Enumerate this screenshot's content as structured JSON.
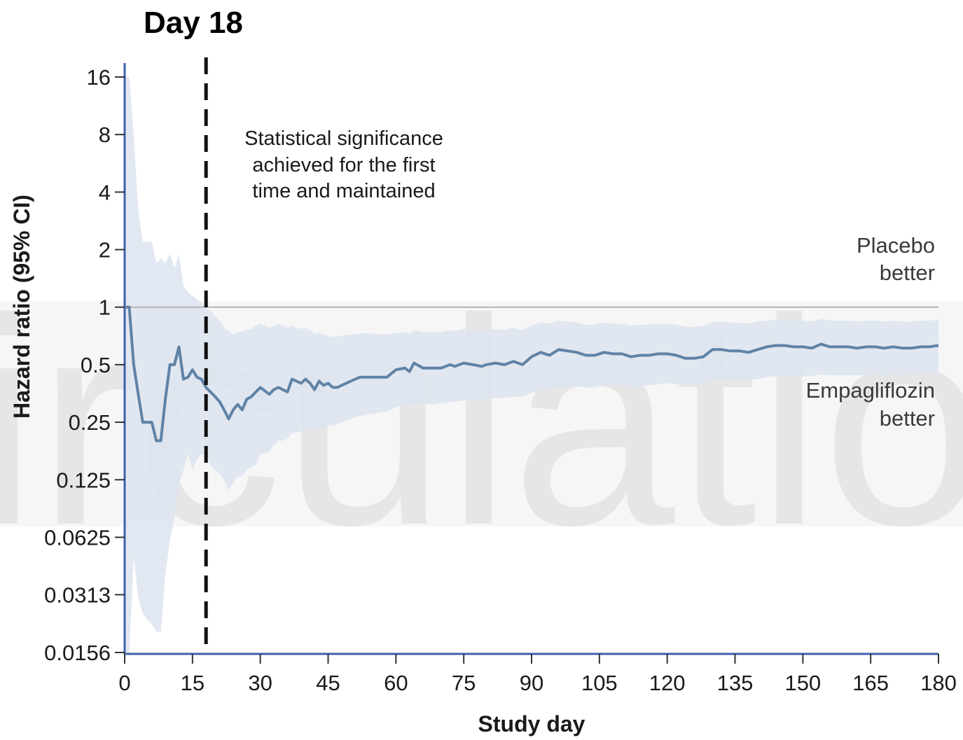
{
  "chart_data": {
    "type": "line",
    "title": "Day 18",
    "xlabel": "Study day",
    "ylabel": "Hazard ratio (95% CI)",
    "y_scale": "log2",
    "xlim": [
      0,
      180
    ],
    "ylim": [
      0.0156,
      16
    ],
    "x_ticks": [
      0,
      15,
      30,
      45,
      60,
      75,
      90,
      105,
      120,
      135,
      150,
      165,
      180
    ],
    "y_ticks": [
      16,
      8,
      4,
      2,
      1,
      0.5,
      0.25,
      0.125,
      0.0625,
      0.0313,
      0.0156
    ],
    "y_tick_labels": [
      "16",
      "8",
      "4",
      "2",
      "1",
      "0.5",
      "0.25",
      "0.125",
      "0.0625",
      "0.0313",
      "0.0156"
    ],
    "reference_line": 1,
    "vertical_marker": {
      "x": 18
    },
    "annotation": [
      "Statistical significance",
      "achieved for the first",
      "time and maintained"
    ],
    "region_labels": {
      "upper": [
        "Placebo",
        "better"
      ],
      "lower": [
        "Empagliflozin",
        "better"
      ]
    },
    "colors": {
      "line": "#5f83a6",
      "ci_band": "#dde4ef",
      "axis": "#3f5fae",
      "reference": "#b3b3b3",
      "marker": "#111111"
    },
    "series": [
      {
        "x": [
          0,
          1,
          2,
          3,
          4,
          5,
          6,
          7,
          8,
          9,
          10,
          11,
          12,
          13,
          14,
          15,
          16,
          17,
          18,
          19,
          20,
          21,
          22,
          23,
          24,
          25,
          26,
          27,
          28,
          29,
          30,
          32,
          33,
          34,
          35,
          36,
          37,
          38,
          39,
          40,
          41,
          42,
          43,
          44,
          45,
          46,
          47,
          48,
          50,
          52,
          54,
          56,
          58,
          60,
          62,
          63,
          64,
          66,
          68,
          70,
          72,
          73,
          75,
          77,
          79,
          80,
          82,
          84,
          86,
          88,
          90,
          92,
          94,
          96,
          98,
          100,
          102,
          104,
          106,
          108,
          110,
          112,
          114,
          116,
          118,
          120,
          122,
          124,
          126,
          128,
          130,
          132,
          134,
          136,
          138,
          140,
          142,
          144,
          146,
          148,
          150,
          152,
          154,
          156,
          158,
          160,
          162,
          164,
          166,
          168,
          170,
          172,
          174,
          176,
          178,
          180
        ],
        "y": [
          1.0,
          1.0,
          0.5,
          0.35,
          0.25,
          0.25,
          0.25,
          0.2,
          0.2,
          0.33,
          0.5,
          0.5,
          0.62,
          0.42,
          0.43,
          0.47,
          0.43,
          0.42,
          0.38,
          0.36,
          0.34,
          0.32,
          0.29,
          0.26,
          0.29,
          0.31,
          0.29,
          0.33,
          0.34,
          0.36,
          0.38,
          0.35,
          0.37,
          0.38,
          0.37,
          0.36,
          0.42,
          0.41,
          0.4,
          0.42,
          0.4,
          0.37,
          0.41,
          0.39,
          0.4,
          0.38,
          0.38,
          0.39,
          0.41,
          0.43,
          0.43,
          0.43,
          0.43,
          0.47,
          0.48,
          0.46,
          0.51,
          0.48,
          0.48,
          0.48,
          0.5,
          0.49,
          0.51,
          0.5,
          0.49,
          0.5,
          0.51,
          0.5,
          0.52,
          0.5,
          0.55,
          0.58,
          0.56,
          0.6,
          0.59,
          0.58,
          0.56,
          0.56,
          0.58,
          0.57,
          0.57,
          0.55,
          0.56,
          0.56,
          0.57,
          0.57,
          0.56,
          0.54,
          0.54,
          0.55,
          0.6,
          0.6,
          0.59,
          0.59,
          0.58,
          0.6,
          0.62,
          0.63,
          0.63,
          0.62,
          0.62,
          0.61,
          0.64,
          0.62,
          0.62,
          0.62,
          0.61,
          0.62,
          0.62,
          0.61,
          0.62,
          0.61,
          0.61,
          0.62,
          0.62,
          0.63
        ],
        "lower": [
          0.0156,
          0.0156,
          0.05,
          0.03,
          0.025,
          0.023,
          0.022,
          0.02,
          0.02,
          0.04,
          0.06,
          0.08,
          0.12,
          0.14,
          0.17,
          0.14,
          0.16,
          0.17,
          0.17,
          0.15,
          0.14,
          0.135,
          0.125,
          0.11,
          0.12,
          0.13,
          0.13,
          0.14,
          0.145,
          0.15,
          0.17,
          0.175,
          0.19,
          0.2,
          0.2,
          0.205,
          0.22,
          0.22,
          0.225,
          0.23,
          0.23,
          0.225,
          0.235,
          0.235,
          0.24,
          0.24,
          0.245,
          0.25,
          0.26,
          0.27,
          0.275,
          0.28,
          0.285,
          0.3,
          0.305,
          0.305,
          0.31,
          0.31,
          0.31,
          0.315,
          0.32,
          0.32,
          0.325,
          0.325,
          0.325,
          0.33,
          0.335,
          0.335,
          0.34,
          0.34,
          0.355,
          0.37,
          0.37,
          0.385,
          0.385,
          0.385,
          0.38,
          0.38,
          0.39,
          0.39,
          0.39,
          0.385,
          0.385,
          0.39,
          0.395,
          0.4,
          0.395,
          0.39,
          0.39,
          0.395,
          0.415,
          0.42,
          0.415,
          0.415,
          0.415,
          0.42,
          0.43,
          0.435,
          0.435,
          0.435,
          0.435,
          0.435,
          0.445,
          0.44,
          0.44,
          0.44,
          0.44,
          0.44,
          0.445,
          0.44,
          0.445,
          0.44,
          0.445,
          0.445,
          0.45,
          0.45
        ],
        "upper": [
          16,
          16,
          8,
          3.2,
          2.2,
          2.2,
          2.2,
          1.7,
          1.8,
          1.7,
          1.9,
          1.6,
          1.9,
          1.3,
          1.2,
          1.15,
          1.1,
          1.05,
          0.98,
          0.96,
          0.9,
          0.85,
          0.78,
          0.75,
          0.72,
          0.74,
          0.75,
          0.76,
          0.77,
          0.8,
          0.82,
          0.78,
          0.8,
          0.82,
          0.8,
          0.78,
          0.8,
          0.78,
          0.77,
          0.78,
          0.76,
          0.72,
          0.74,
          0.72,
          0.71,
          0.7,
          0.7,
          0.71,
          0.72,
          0.73,
          0.73,
          0.72,
          0.72,
          0.73,
          0.74,
          0.73,
          0.76,
          0.74,
          0.74,
          0.74,
          0.76,
          0.75,
          0.77,
          0.76,
          0.75,
          0.76,
          0.77,
          0.76,
          0.78,
          0.76,
          0.8,
          0.83,
          0.82,
          0.85,
          0.84,
          0.83,
          0.81,
          0.81,
          0.83,
          0.82,
          0.82,
          0.8,
          0.81,
          0.81,
          0.82,
          0.82,
          0.81,
          0.79,
          0.79,
          0.8,
          0.84,
          0.84,
          0.83,
          0.83,
          0.82,
          0.84,
          0.85,
          0.86,
          0.86,
          0.85,
          0.85,
          0.84,
          0.87,
          0.85,
          0.85,
          0.85,
          0.84,
          0.85,
          0.85,
          0.84,
          0.85,
          0.84,
          0.84,
          0.85,
          0.85,
          0.86
        ]
      }
    ]
  },
  "watermark": {
    "text": "irculation",
    "color": "#d9d9d9"
  }
}
